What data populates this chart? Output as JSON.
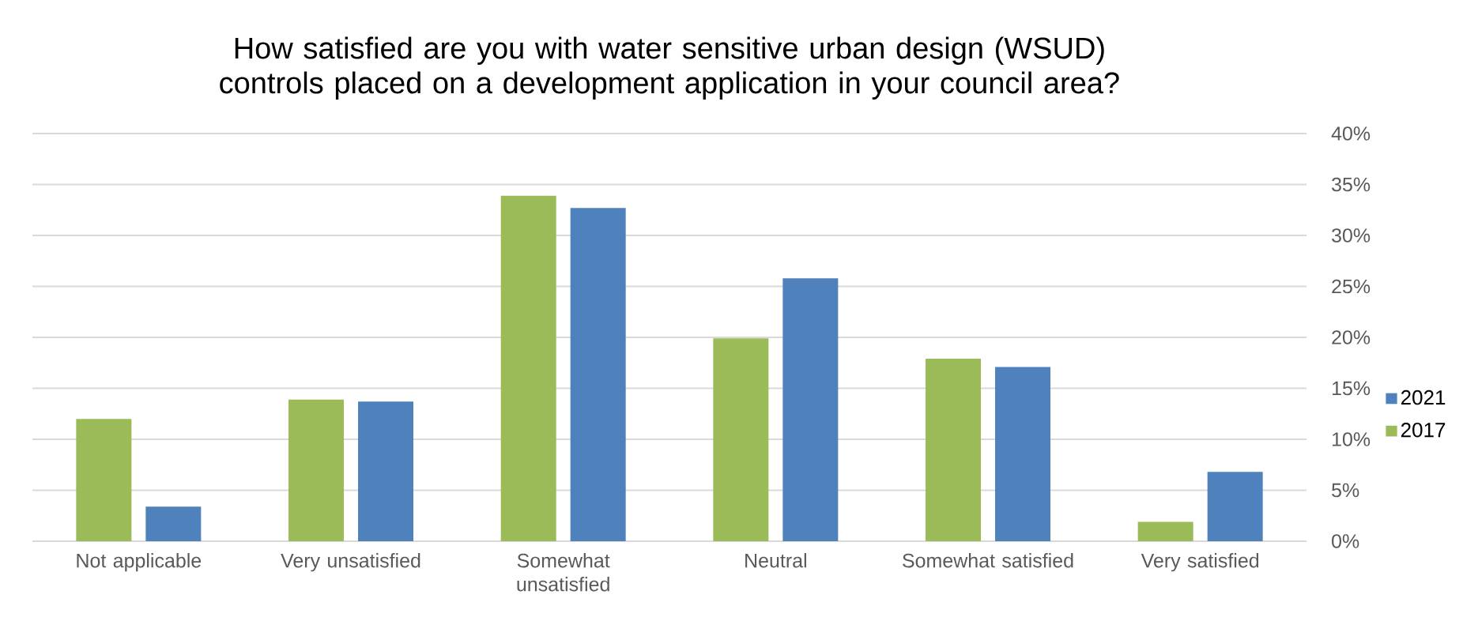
{
  "chart_data": {
    "type": "bar",
    "title": "How satisfied are you with water sensitive urban design (WSUD) controls placed on a development application in your council area?",
    "categories": [
      "Not applicable",
      "Very unsatisfied",
      "Somewhat unsatisfied",
      "Neutral",
      "Somewhat satisfied",
      "Very satisfied"
    ],
    "series": [
      {
        "name": "2017",
        "color": "#9bbb59",
        "values": [
          12,
          13.9,
          33.9,
          19.9,
          17.9,
          1.9
        ]
      },
      {
        "name": "2021",
        "color": "#4f81bd",
        "values": [
          3.4,
          13.7,
          32.7,
          25.8,
          17.1,
          6.8
        ]
      }
    ],
    "ylim": [
      0,
      40
    ],
    "yticks": [
      {
        "value": 0,
        "label": "0%"
      },
      {
        "value": 5,
        "label": "5%"
      },
      {
        "value": 10,
        "label": "10%"
      },
      {
        "value": 15,
        "label": "15%"
      },
      {
        "value": 20,
        "label": "20%"
      },
      {
        "value": 25,
        "label": "25%"
      },
      {
        "value": 30,
        "label": "30%"
      },
      {
        "value": 35,
        "label": "35%"
      },
      {
        "value": 40,
        "label": "40%"
      }
    ],
    "grid": "y",
    "legend": "right"
  }
}
